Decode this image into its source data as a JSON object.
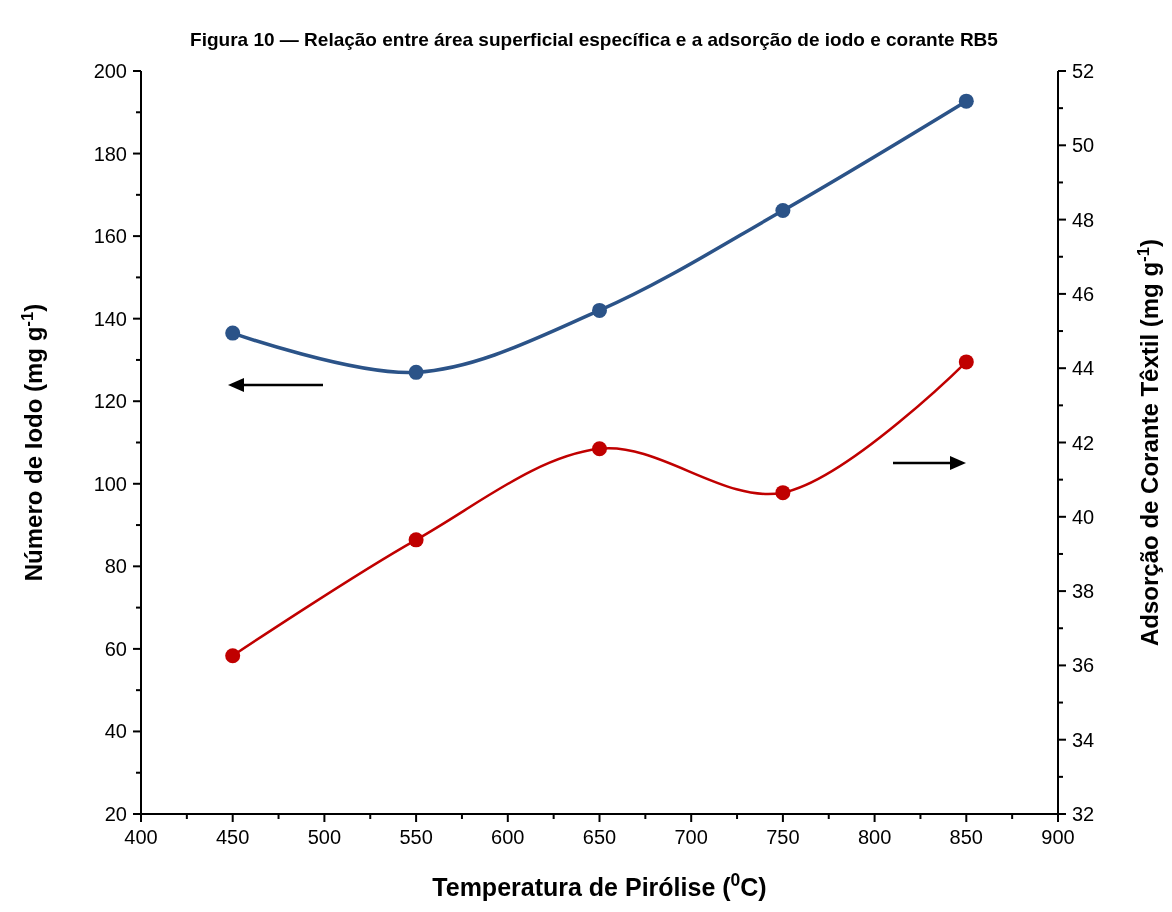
{
  "chart_data": {
    "type": "line",
    "title": "Figura 10 — Relação entre área superficial específica e a adsorção de iodo e corante RB5",
    "xlabel": "Temperatura  de Pirólise ($^{0}$C)",
    "ylabel": "Número de Iodo (mg g$^{-1}$)",
    "y2label": "Adsorção de Corante Têxtil (mg g$^{-1}$)",
    "x": [
      450,
      550,
      650,
      750,
      850
    ],
    "series": [
      {
        "color": "#2b5388",
        "values": [
          136.5,
          127,
          142,
          166.2,
          192.7
        ]
      },
      {
        "color": "#c00000",
        "values": [
          36.26,
          39.38,
          41.83,
          40.65,
          44.17
        ],
        "axis": "y2"
      }
    ],
    "xlim": [
      400,
      900
    ],
    "xticks": [
      400,
      450,
      500,
      550,
      600,
      650,
      700,
      750,
      800,
      850,
      900
    ],
    "ylim": [
      20,
      200
    ],
    "yticks": [
      20,
      40,
      60,
      80,
      100,
      120,
      140,
      160,
      180,
      200
    ],
    "y2lim": [
      32,
      52
    ],
    "y2ticks": [
      32,
      34,
      36,
      38,
      40,
      42,
      44,
      46,
      48,
      50,
      52
    ],
    "marker": "circle",
    "line_style": "solid"
  }
}
